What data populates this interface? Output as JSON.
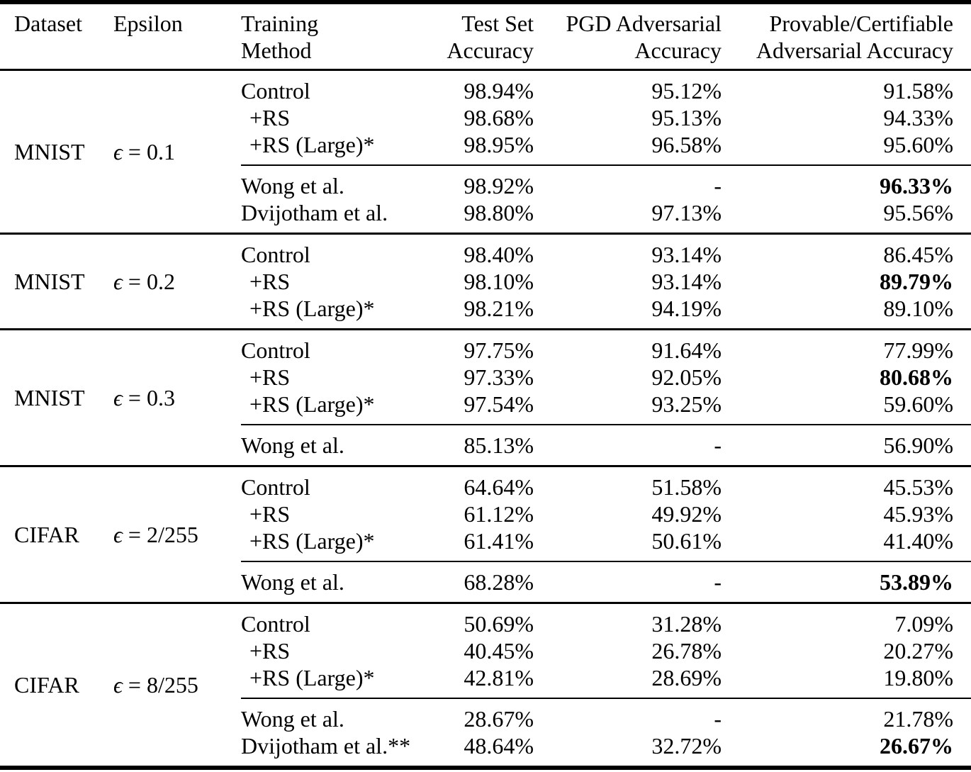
{
  "header": {
    "dataset": "Dataset",
    "epsilon": "Epsilon",
    "training_line1": "Training",
    "training_line2": "Method",
    "test_line1": "Test Set",
    "test_line2": "Accuracy",
    "pgd_line1": "PGD Adversarial",
    "pgd_line2": "Accuracy",
    "provable_line1": "Provable/Certifiable",
    "provable_line2": "Adversarial Accuracy"
  },
  "blocks": [
    {
      "dataset": "MNIST",
      "epsilon_symbol": "ϵ",
      "epsilon_value": "= 0.1",
      "main_rows": [
        {
          "method": "Control",
          "test": "98.94%",
          "pgd": "95.12%",
          "provable": "91.58%",
          "provable_bold": false
        },
        {
          "method": "+RS",
          "test": "98.68%",
          "pgd": "95.13%",
          "provable": "94.33%",
          "provable_bold": false
        },
        {
          "method": "+RS (Large)*",
          "test": "98.95%",
          "pgd": "96.58%",
          "provable": "95.60%",
          "provable_bold": false
        }
      ],
      "baseline_rows": [
        {
          "method": "Wong et al.",
          "test": "98.92%",
          "pgd": "-",
          "provable": "96.33%",
          "provable_bold": true
        },
        {
          "method": "Dvijotham et al.",
          "test": "98.80%",
          "pgd": "97.13%",
          "provable": "95.56%",
          "provable_bold": false
        }
      ]
    },
    {
      "dataset": "MNIST",
      "epsilon_symbol": "ϵ",
      "epsilon_value": "= 0.2",
      "main_rows": [
        {
          "method": "Control",
          "test": "98.40%",
          "pgd": "93.14%",
          "provable": "86.45%",
          "provable_bold": false
        },
        {
          "method": "+RS",
          "test": "98.10%",
          "pgd": "93.14%",
          "provable": "89.79%",
          "provable_bold": true
        },
        {
          "method": "+RS (Large)*",
          "test": "98.21%",
          "pgd": "94.19%",
          "provable": "89.10%",
          "provable_bold": false
        }
      ],
      "baseline_rows": []
    },
    {
      "dataset": "MNIST",
      "epsilon_symbol": "ϵ",
      "epsilon_value": "= 0.3",
      "main_rows": [
        {
          "method": "Control",
          "test": "97.75%",
          "pgd": "91.64%",
          "provable": "77.99%",
          "provable_bold": false
        },
        {
          "method": "+RS",
          "test": "97.33%",
          "pgd": "92.05%",
          "provable": "80.68%",
          "provable_bold": true
        },
        {
          "method": "+RS (Large)*",
          "test": "97.54%",
          "pgd": "93.25%",
          "provable": "59.60%",
          "provable_bold": false
        }
      ],
      "baseline_rows": [
        {
          "method": "Wong et al.",
          "test": "85.13%",
          "pgd": "-",
          "provable": "56.90%",
          "provable_bold": false
        }
      ]
    },
    {
      "dataset": "CIFAR",
      "epsilon_symbol": "ϵ",
      "epsilon_value": "= 2/255",
      "main_rows": [
        {
          "method": "Control",
          "test": "64.64%",
          "pgd": "51.58%",
          "provable": "45.53%",
          "provable_bold": false
        },
        {
          "method": "+RS",
          "test": "61.12%",
          "pgd": "49.92%",
          "provable": "45.93%",
          "provable_bold": false
        },
        {
          "method": "+RS (Large)*",
          "test": "61.41%",
          "pgd": "50.61%",
          "provable": "41.40%",
          "provable_bold": false
        }
      ],
      "baseline_rows": [
        {
          "method": "Wong et al.",
          "test": "68.28%",
          "pgd": "-",
          "provable": "53.89%",
          "provable_bold": true
        }
      ]
    },
    {
      "dataset": "CIFAR",
      "epsilon_symbol": "ϵ",
      "epsilon_value": "= 8/255",
      "main_rows": [
        {
          "method": "Control",
          "test": "50.69%",
          "pgd": "31.28%",
          "provable": "7.09%",
          "provable_bold": false
        },
        {
          "method": "+RS",
          "test": "40.45%",
          "pgd": "26.78%",
          "provable": "20.27%",
          "provable_bold": false
        },
        {
          "method": "+RS (Large)*",
          "test": "42.81%",
          "pgd": "28.69%",
          "provable": "19.80%",
          "provable_bold": false
        }
      ],
      "baseline_rows": [
        {
          "method": "Wong et al.",
          "test": "28.67%",
          "pgd": "-",
          "provable": "21.78%",
          "provable_bold": false
        },
        {
          "method": "Dvijotham et al.**",
          "test": "48.64%",
          "pgd": "32.72%",
          "provable": "26.67%",
          "provable_bold": true
        }
      ]
    }
  ]
}
